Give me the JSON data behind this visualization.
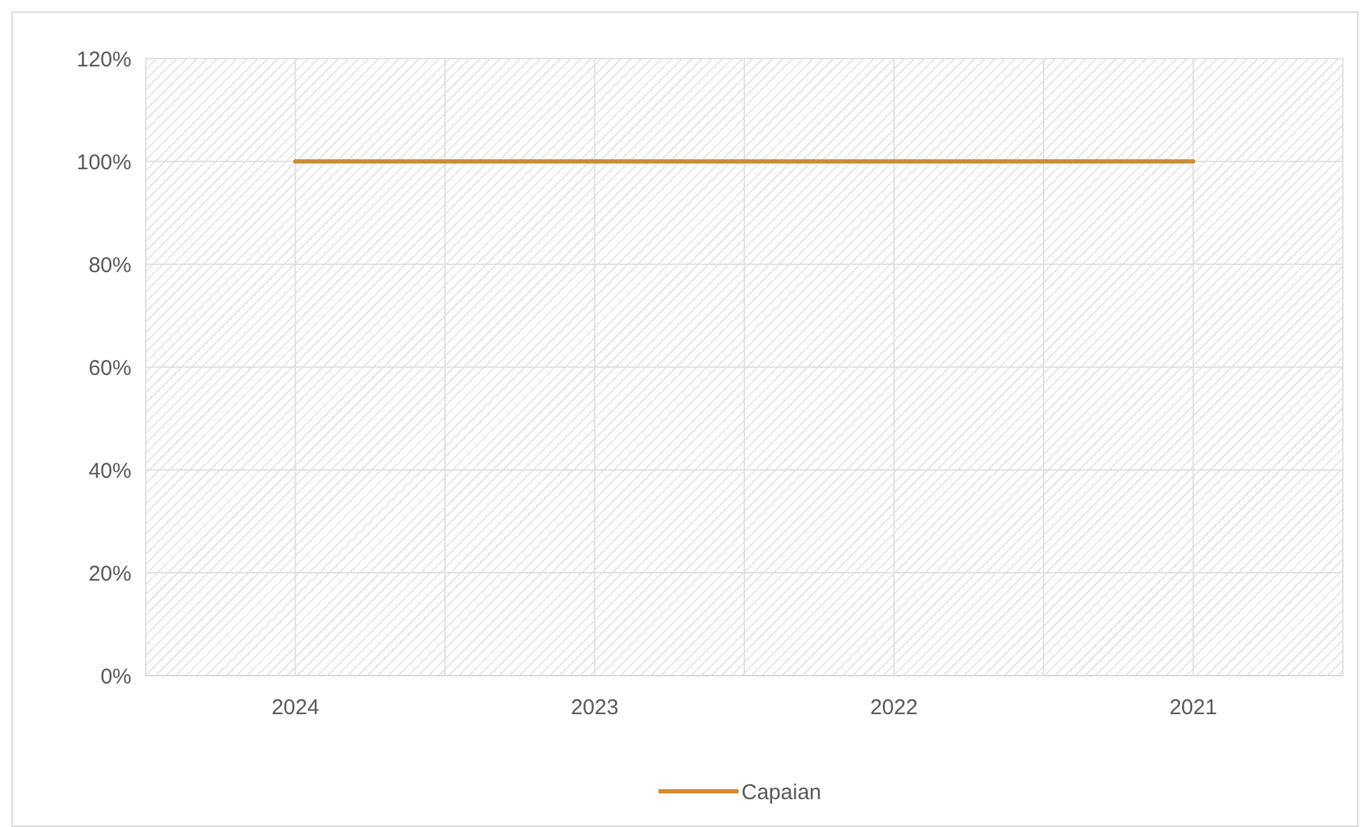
{
  "chart_data": {
    "type": "line",
    "categories": [
      "2024",
      "2023",
      "2022",
      "2021"
    ],
    "series": [
      {
        "name": "Capaian",
        "color": "#d08c34",
        "values": [
          100,
          100,
          100,
          100
        ]
      }
    ],
    "ylim": [
      0,
      120
    ],
    "yticks": [
      {
        "value": 0,
        "label": "0%"
      },
      {
        "value": 20,
        "label": "20%"
      },
      {
        "value": 40,
        "label": "40%"
      },
      {
        "value": 60,
        "label": "60%"
      },
      {
        "value": 80,
        "label": "80%"
      },
      {
        "value": 100,
        "label": "100%"
      },
      {
        "value": 120,
        "label": "120%"
      }
    ],
    "grid": true,
    "legend": "bottom",
    "marker": "none",
    "line_style": "solid"
  }
}
